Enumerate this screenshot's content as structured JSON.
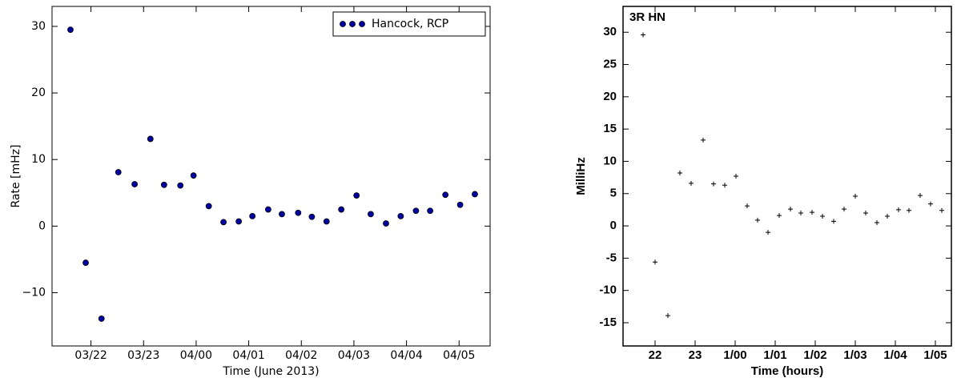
{
  "chart_data": [
    {
      "type": "scatter",
      "xlabel": "Time (June 2013)",
      "ylabel": "Rate [mHz]",
      "xlim": [
        -2.74,
        5.59
      ],
      "ylim": [
        -18,
        33
      ],
      "xticks": [
        {
          "value": -2,
          "label": "03/22"
        },
        {
          "value": -1,
          "label": "03/23"
        },
        {
          "value": 0,
          "label": "04/00"
        },
        {
          "value": 1,
          "label": "04/01"
        },
        {
          "value": 2,
          "label": "04/02"
        },
        {
          "value": 3,
          "label": "04/03"
        },
        {
          "value": 4,
          "label": "04/04"
        },
        {
          "value": 5,
          "label": "04/05"
        }
      ],
      "yticks": [
        {
          "value": -10,
          "label": "−10"
        },
        0,
        10,
        20,
        30
      ],
      "marker": "circle",
      "legend": "upper right",
      "series": [
        {
          "name": "Hancock, RCP",
          "color": "#0000a0",
          "x": [
            -2.39,
            -2.1,
            -1.8,
            -1.48,
            -1.17,
            -0.87,
            -0.61,
            -0.3,
            -0.05,
            0.24,
            0.52,
            0.81,
            1.07,
            1.37,
            1.63,
            1.94,
            2.2,
            2.48,
            2.76,
            3.05,
            3.32,
            3.61,
            3.89,
            4.18,
            4.45,
            4.74,
            5.02,
            5.3
          ],
          "values": [
            29.5,
            -5.5,
            -13.9,
            8.1,
            6.3,
            13.1,
            6.2,
            6.1,
            7.6,
            3.0,
            0.6,
            0.7,
            1.5,
            2.5,
            1.8,
            2.0,
            1.4,
            0.7,
            2.5,
            4.6,
            1.8,
            0.4,
            1.5,
            2.3,
            2.3,
            4.7,
            3.2,
            4.8
          ]
        }
      ]
    },
    {
      "type": "scatter",
      "title": "3R HN",
      "xlabel": "Time (hours)",
      "ylabel": "MilliHz",
      "xlim": [
        -2.8,
        5.4
      ],
      "ylim": [
        -18.6,
        34
      ],
      "xticks": [
        {
          "value": -2,
          "label": "22"
        },
        {
          "value": -1,
          "label": "23"
        },
        {
          "value": 0,
          "label": "1/00"
        },
        {
          "value": 1,
          "label": "1/01"
        },
        {
          "value": 2,
          "label": "1/02"
        },
        {
          "value": 3,
          "label": "1/03"
        },
        {
          "value": 4,
          "label": "1/04"
        },
        {
          "value": 5,
          "label": "1/05"
        }
      ],
      "yticks": [
        -15,
        -10,
        -5,
        0,
        5,
        10,
        15,
        20,
        25,
        30
      ],
      "marker": "plus",
      "series": [
        {
          "color": "#000000",
          "x": [
            -2.3,
            -2.0,
            -1.68,
            -1.38,
            -1.1,
            -0.8,
            -0.54,
            -0.26,
            0.02,
            0.3,
            0.56,
            0.82,
            1.1,
            1.38,
            1.64,
            1.92,
            2.18,
            2.46,
            2.72,
            3.0,
            3.26,
            3.54,
            3.8,
            4.08,
            4.34,
            4.62,
            4.88,
            5.16
          ],
          "values": [
            29.6,
            -5.6,
            -13.9,
            8.2,
            6.6,
            13.3,
            6.5,
            6.3,
            7.7,
            3.1,
            0.9,
            -1.0,
            1.6,
            2.6,
            2.0,
            2.1,
            1.5,
            0.7,
            2.6,
            4.6,
            2.0,
            0.5,
            1.5,
            2.5,
            2.4,
            4.7,
            3.4,
            2.4
          ]
        }
      ]
    }
  ]
}
